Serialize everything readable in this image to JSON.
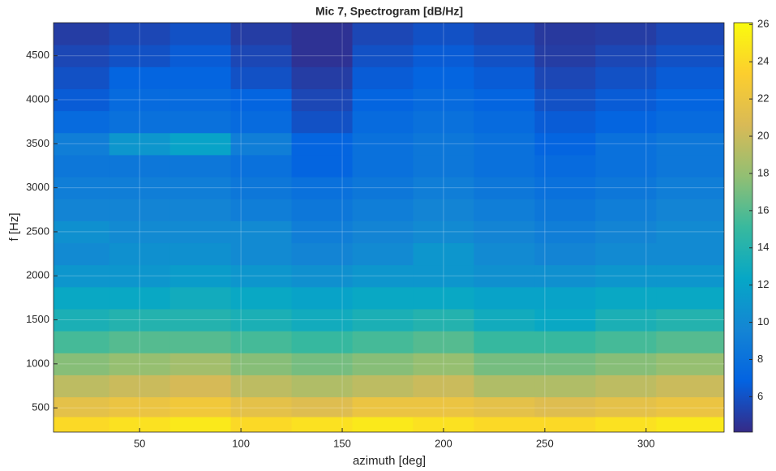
{
  "chart_data": {
    "type": "heatmap",
    "title": "Mic 7, Spectrogram [dB/Hz]",
    "x_label": "azimuth [deg]",
    "y_label": "f [Hz]",
    "x": [
      20,
      50,
      80,
      110,
      140,
      170,
      200,
      230,
      260,
      290,
      320
    ],
    "y": [
      300,
      500,
      750,
      1000,
      1250,
      1500,
      1750,
      2000,
      2250,
      2500,
      2750,
      3000,
      3250,
      3500,
      3750,
      4000,
      4250,
      4500,
      4750
    ],
    "z": [
      [
        24,
        24.5,
        25,
        24,
        24.5,
        25,
        24.5,
        24,
        24,
        24.5,
        25
      ],
      [
        21.5,
        22,
        22.5,
        21.5,
        21,
        22,
        22,
        21.5,
        21,
        21.5,
        22
      ],
      [
        19.5,
        20,
        20.5,
        19.5,
        19,
        19.5,
        20,
        19,
        19,
        19.5,
        20
      ],
      [
        17.5,
        18,
        18.5,
        17.5,
        17,
        17.5,
        18,
        17,
        17,
        17.5,
        18
      ],
      [
        15.5,
        16,
        16,
        15.5,
        15,
        15.5,
        16,
        15,
        15,
        15.5,
        16
      ],
      [
        13.5,
        14,
        14,
        13.5,
        13,
        13.5,
        14,
        13,
        12.5,
        13.5,
        14
      ],
      [
        12.5,
        12.5,
        13,
        12.5,
        12,
        12.5,
        12.5,
        12,
        12,
        12.5,
        12.5
      ],
      [
        11,
        11,
        11.5,
        11,
        10.5,
        11,
        11,
        10.5,
        10.5,
        11,
        11
      ],
      [
        10,
        10.5,
        10.5,
        10,
        9.5,
        10,
        11,
        10,
        9.5,
        10,
        10
      ],
      [
        10.5,
        10,
        10,
        10,
        9,
        9.5,
        10,
        9.5,
        9,
        9.5,
        10
      ],
      [
        9.5,
        9.5,
        9.5,
        9,
        8.5,
        9,
        9.5,
        9,
        8.5,
        9,
        9.5
      ],
      [
        9,
        9,
        9,
        8.5,
        8,
        8.5,
        9,
        8.5,
        8,
        8.5,
        9
      ],
      [
        8.5,
        8.5,
        8.5,
        8,
        7,
        8,
        8.5,
        8,
        7.5,
        8,
        8.5
      ],
      [
        9,
        11,
        12,
        9,
        7,
        8,
        8.5,
        8,
        7,
        8,
        8.5
      ],
      [
        7.5,
        8,
        8,
        7.5,
        6,
        7.5,
        8,
        7.5,
        6.5,
        7,
        7.5
      ],
      [
        6.5,
        7.5,
        7.5,
        7,
        5.5,
        7,
        7.5,
        7,
        6,
        6.5,
        7
      ],
      [
        6,
        7,
        7,
        6,
        5,
        6.5,
        7,
        6.5,
        5.5,
        6,
        6.5
      ],
      [
        5.5,
        6,
        6.5,
        5.5,
        4.5,
        6,
        6.5,
        6,
        5,
        5.5,
        6
      ],
      [
        5,
        5.5,
        6,
        5,
        4.5,
        5.5,
        6,
        5.5,
        4.8,
        5,
        5.5
      ]
    ],
    "xlim": [
      7.5,
      338.5
    ],
    "xticks": [
      50,
      100,
      150,
      200,
      250,
      300
    ],
    "ylim": [
      225,
      4875
    ],
    "yticks": [
      500,
      1000,
      1500,
      2000,
      2500,
      3000,
      3500,
      4000,
      4500
    ],
    "clim": [
      4.1,
      26.1
    ],
    "cticks": [
      6,
      8,
      10,
      12,
      14,
      16,
      18,
      20,
      22,
      24,
      26
    ],
    "colormap": "parula",
    "grid": true
  }
}
